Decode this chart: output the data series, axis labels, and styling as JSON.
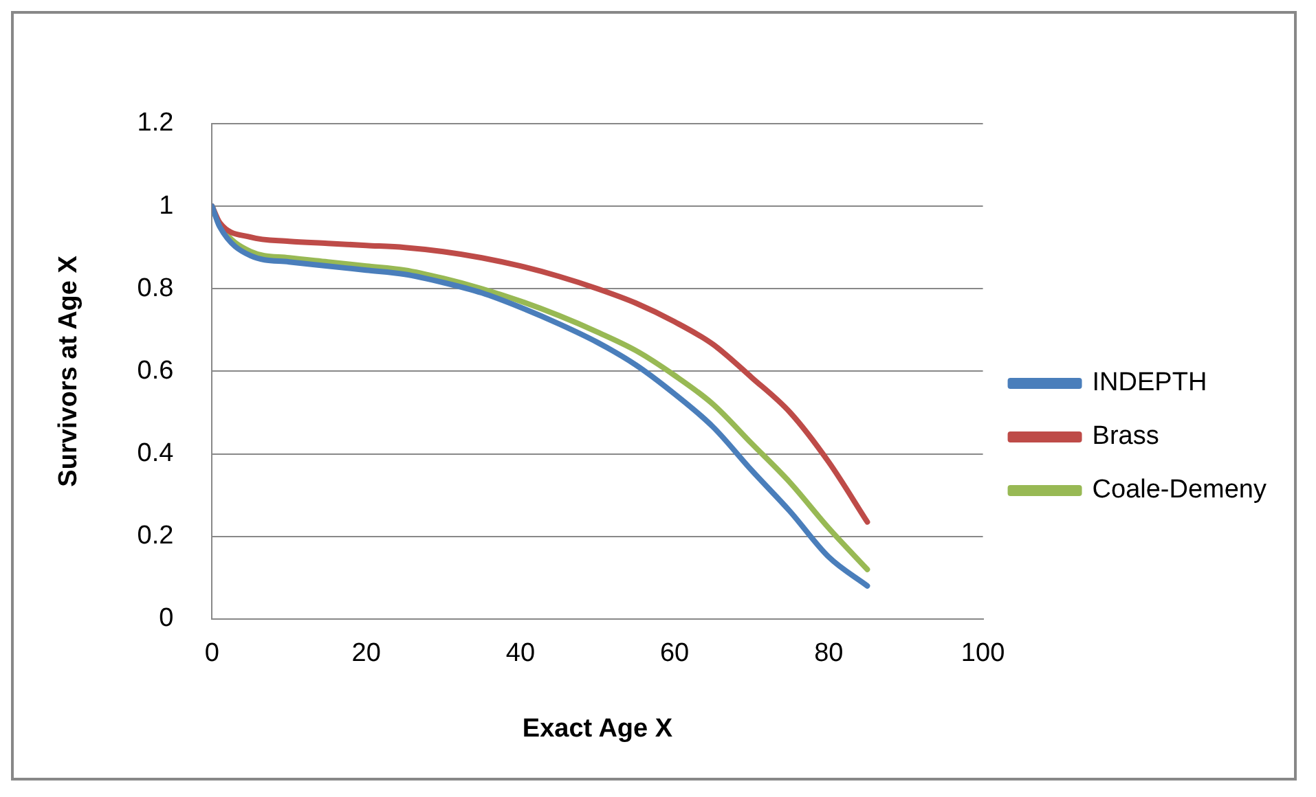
{
  "chart_data": {
    "type": "line",
    "xlabel": "Exact Age X",
    "ylabel": "Survivors at Age X",
    "x": [
      0,
      1,
      5,
      10,
      15,
      20,
      25,
      30,
      35,
      40,
      45,
      50,
      55,
      60,
      65,
      70,
      75,
      80,
      85
    ],
    "series": [
      {
        "name": "INDEPTH",
        "color": "#4a7ebb",
        "values": [
          1,
          0.95,
          0.88,
          0.865,
          0.855,
          0.845,
          0.835,
          0.815,
          0.79,
          0.755,
          0.715,
          0.67,
          0.615,
          0.545,
          0.465,
          0.36,
          0.26,
          0.15,
          0.08
        ]
      },
      {
        "name": "Brass",
        "color": "#be4b48",
        "values": [
          1,
          0.96,
          0.925,
          0.915,
          0.91,
          0.905,
          0.9,
          0.89,
          0.875,
          0.855,
          0.83,
          0.8,
          0.765,
          0.72,
          0.665,
          0.585,
          0.5,
          0.38,
          0.235
        ]
      },
      {
        "name": "Coale-Demeny",
        "color": "#98b954",
        "values": [
          1,
          0.955,
          0.89,
          0.875,
          0.865,
          0.855,
          0.845,
          0.825,
          0.8,
          0.77,
          0.735,
          0.695,
          0.65,
          0.59,
          0.52,
          0.425,
          0.33,
          0.22,
          0.12
        ]
      }
    ],
    "xlim": [
      0,
      100
    ],
    "xticks": [
      0,
      20,
      40,
      60,
      80,
      100
    ],
    "ylim": [
      0,
      1.2
    ],
    "yticks": [
      0,
      0.2,
      0.4,
      0.6,
      0.8,
      1,
      1.2
    ],
    "grid": "y",
    "legend": "right",
    "marker": "none",
    "line_style": "solid"
  }
}
